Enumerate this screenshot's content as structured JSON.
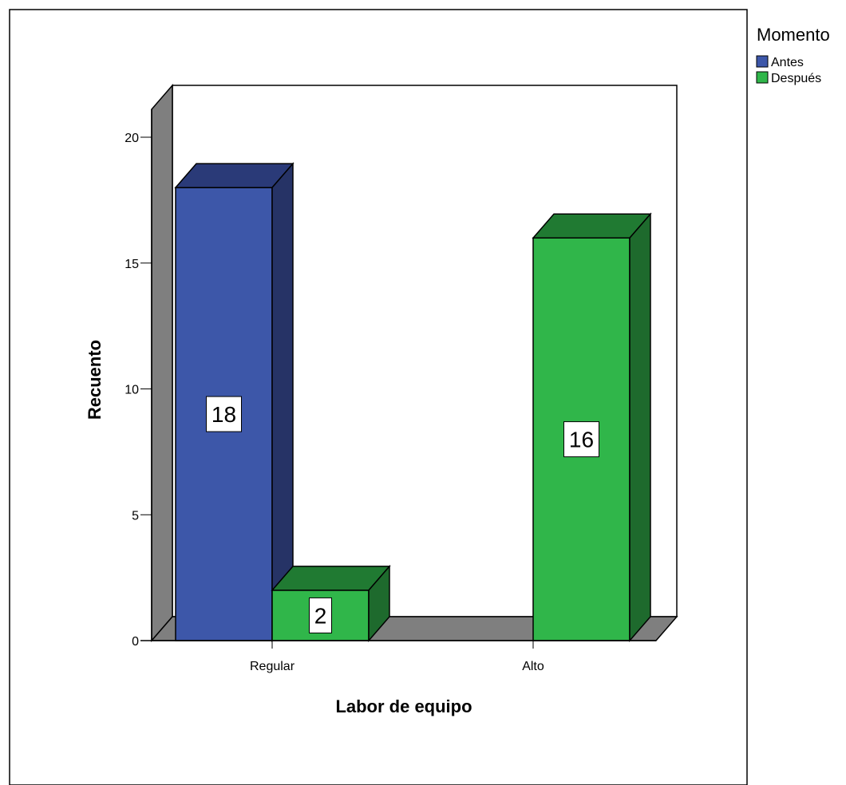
{
  "chart_data": {
    "type": "bar",
    "title": "",
    "xlabel": "Labor de equipo",
    "ylabel": "Recuento",
    "categories": [
      "Regular",
      "Alto"
    ],
    "series": [
      {
        "name": "Antes",
        "values": [
          18,
          0
        ],
        "color": "#3D57A9",
        "side_color": "#263366",
        "top_color": "#2A3A78"
      },
      {
        "name": "Después",
        "values": [
          2,
          16
        ],
        "color": "#30B64A",
        "side_color": "#1E6A2D",
        "top_color": "#207A32"
      }
    ],
    "data_labels": [
      {
        "series": 0,
        "category": 0,
        "text": "18"
      },
      {
        "series": 1,
        "category": 0,
        "text": "2"
      },
      {
        "series": 1,
        "category": 1,
        "text": "16"
      }
    ],
    "ylim": [
      0,
      20
    ],
    "yticks": [
      0,
      5,
      10,
      15,
      20
    ],
    "legend": {
      "title": "Momento",
      "position": "top-right"
    },
    "grid": false,
    "three_d": true,
    "wall_color": "#7F7F7F"
  }
}
